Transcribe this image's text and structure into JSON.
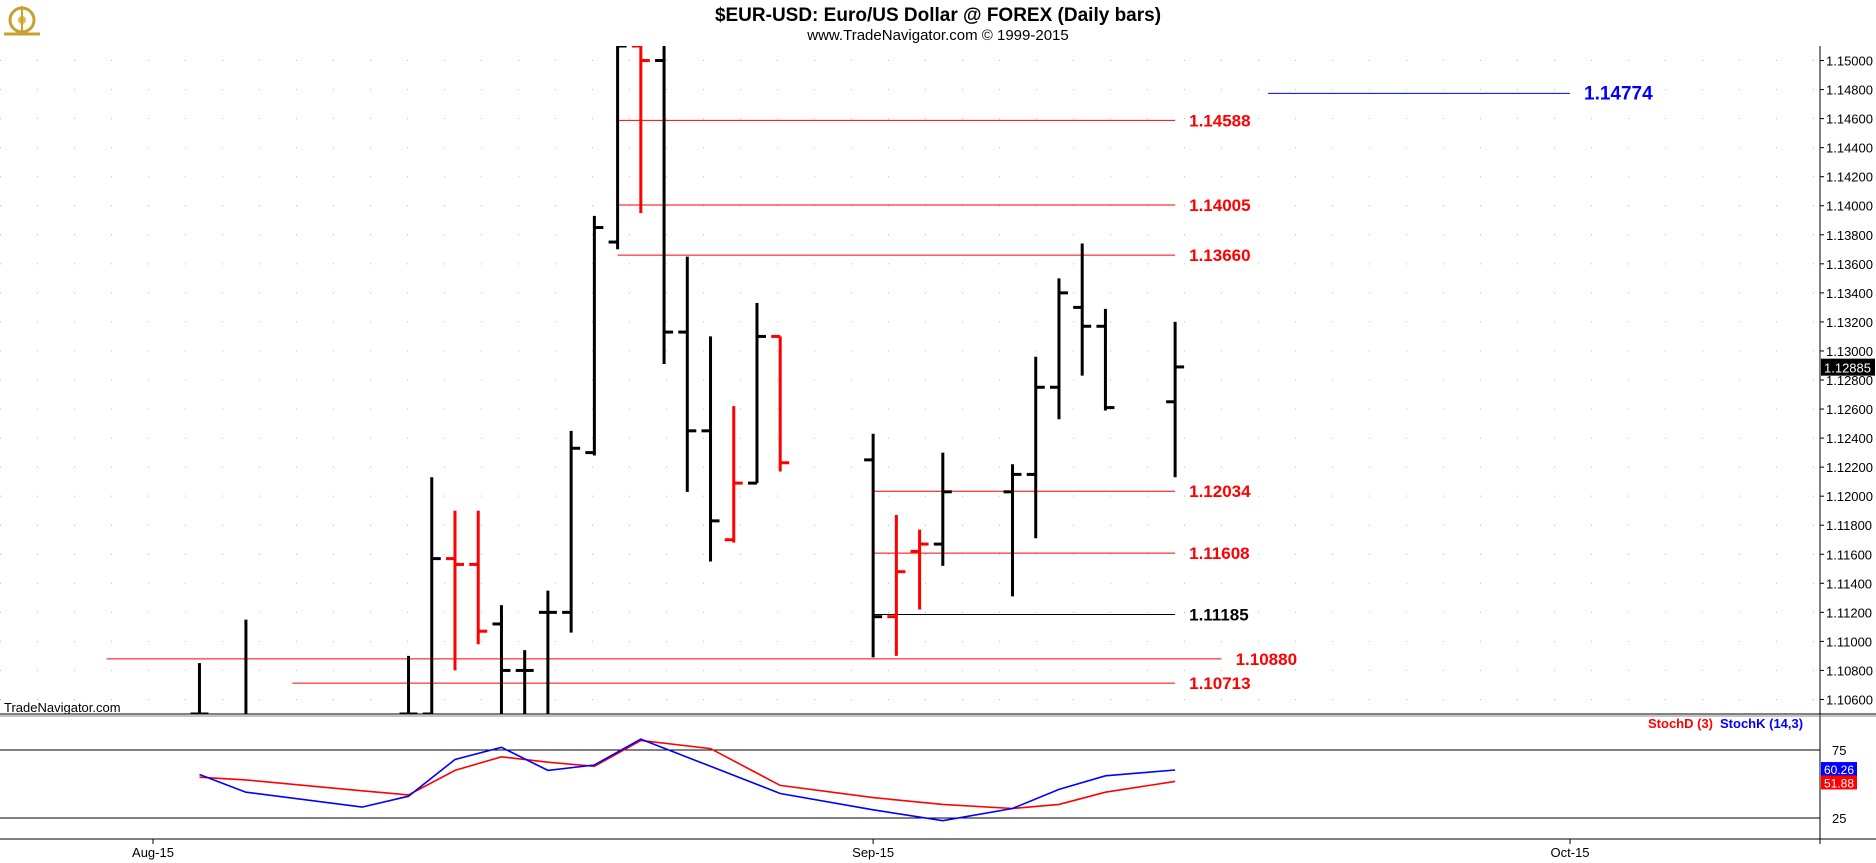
{
  "header": {
    "title": "$EUR-USD:  Euro/US Dollar @ FOREX  (Daily bars)",
    "copyright": "www.TradeNavigator.com © 1999-2015",
    "watermark": "TradeNavigator.com",
    "logo_icon": "gyroscope-logo-icon"
  },
  "colors": {
    "up_bar": "#000000",
    "down_bar": "#ff0000",
    "support_line": "#ff0000",
    "target_line": "#0000ff",
    "stoch_d": "#ff0000",
    "stoch_k": "#0000ff",
    "last_price_bg": "#000000"
  },
  "chart_data": [
    {
      "type": "ohlc",
      "title": "$EUR-USD:  Euro/US Dollar @ FOREX  (Daily bars)",
      "ylim": [
        1.105,
        1.151
      ],
      "y_ticks": [
        {
          "v": 1.106,
          "label": "1.10600"
        },
        {
          "v": 1.108,
          "label": "1.10800"
        },
        {
          "v": 1.11,
          "label": "1.11000"
        },
        {
          "v": 1.112,
          "label": "1.11200"
        },
        {
          "v": 1.114,
          "label": "1.11400"
        },
        {
          "v": 1.116,
          "label": "1.11600"
        },
        {
          "v": 1.118,
          "label": "1.11800"
        },
        {
          "v": 1.12,
          "label": "1.12000"
        },
        {
          "v": 1.122,
          "label": "1.12200"
        },
        {
          "v": 1.124,
          "label": "1.12400"
        },
        {
          "v": 1.126,
          "label": "1.12600"
        },
        {
          "v": 1.128,
          "label": "1.12800"
        },
        {
          "v": 1.13,
          "label": "1.13000"
        },
        {
          "v": 1.132,
          "label": "1.13200"
        },
        {
          "v": 1.134,
          "label": "1.13400"
        },
        {
          "v": 1.136,
          "label": "1.13600"
        },
        {
          "v": 1.138,
          "label": "1.13800"
        },
        {
          "v": 1.14,
          "label": "1.14000"
        },
        {
          "v": 1.142,
          "label": "1.14200"
        },
        {
          "v": 1.144,
          "label": "1.14400"
        },
        {
          "v": 1.146,
          "label": "1.14600"
        },
        {
          "v": 1.148,
          "label": "1.14800"
        },
        {
          "v": 1.15,
          "label": "1.15000"
        }
      ],
      "last_price": {
        "value": 1.12885,
        "label": "1.12885"
      },
      "bars": [
        {
          "d": "2015-08-03",
          "o": 1.105,
          "h": 1.1085,
          "l": 1.104,
          "c": 1.105,
          "dir": "up"
        },
        {
          "d": "2015-08-05",
          "o": 1.103,
          "h": 1.1115,
          "l": 1.1,
          "c": 1.104,
          "dir": "up"
        },
        {
          "d": "2015-08-12",
          "o": 1.105,
          "h": 1.109,
          "l": 1.103,
          "c": 1.105,
          "dir": "up"
        },
        {
          "d": "2015-08-13",
          "o": 1.105,
          "h": 1.1213,
          "l": 1.103,
          "c": 1.1157,
          "dir": "up"
        },
        {
          "d": "2015-08-14",
          "o": 1.1157,
          "h": 1.119,
          "l": 1.108,
          "c": 1.1153,
          "dir": "down"
        },
        {
          "d": "2015-08-15",
          "o": 1.1153,
          "h": 1.119,
          "l": 1.1098,
          "c": 1.1107,
          "dir": "down"
        },
        {
          "d": "2015-08-16",
          "o": 1.1112,
          "h": 1.1125,
          "l": 1.104,
          "c": 1.108,
          "dir": "up"
        },
        {
          "d": "2015-08-17",
          "o": 1.108,
          "h": 1.1094,
          "l": 1.104,
          "c": 1.108,
          "dir": "up"
        },
        {
          "d": "2015-08-18",
          "o": 1.112,
          "h": 1.1135,
          "l": 1.104,
          "c": 1.112,
          "dir": "up"
        },
        {
          "d": "2015-08-19",
          "o": 1.112,
          "h": 1.1245,
          "l": 1.1106,
          "c": 1.1233,
          "dir": "up"
        },
        {
          "d": "2015-08-20",
          "o": 1.123,
          "h": 1.1393,
          "l": 1.1228,
          "c": 1.1385,
          "dir": "up"
        },
        {
          "d": "2015-08-21",
          "o": 1.1375,
          "h": 1.152,
          "l": 1.137,
          "c": 1.151,
          "dir": "up"
        },
        {
          "d": "2015-08-22",
          "o": 1.151,
          "h": 1.152,
          "l": 1.1395,
          "c": 1.15,
          "dir": "down"
        },
        {
          "d": "2015-08-23",
          "o": 1.15,
          "h": 1.152,
          "l": 1.1291,
          "c": 1.1313,
          "dir": "up"
        },
        {
          "d": "2015-08-24",
          "o": 1.1313,
          "h": 1.1365,
          "l": 1.1203,
          "c": 1.1245,
          "dir": "up"
        },
        {
          "d": "2015-08-25",
          "o": 1.1245,
          "h": 1.131,
          "l": 1.1155,
          "c": 1.1183,
          "dir": "up"
        },
        {
          "d": "2015-08-26",
          "o": 1.117,
          "h": 1.1262,
          "l": 1.1168,
          "c": 1.1209,
          "dir": "down"
        },
        {
          "d": "2015-08-27",
          "o": 1.1209,
          "h": 1.1333,
          "l": 1.1209,
          "c": 1.131,
          "dir": "up"
        },
        {
          "d": "2015-08-28",
          "o": 1.131,
          "h": 1.131,
          "l": 1.1217,
          "c": 1.1223,
          "dir": "down"
        },
        {
          "d": "2015-09-01",
          "o": 1.1225,
          "h": 1.1243,
          "l": 1.1089,
          "c": 1.1117,
          "dir": "up"
        },
        {
          "d": "2015-09-02",
          "o": 1.1117,
          "h": 1.1187,
          "l": 1.109,
          "c": 1.1148,
          "dir": "down"
        },
        {
          "d": "2015-09-03",
          "o": 1.1162,
          "h": 1.1177,
          "l": 1.1122,
          "c": 1.1167,
          "dir": "down"
        },
        {
          "d": "2015-09-04",
          "o": 1.1167,
          "h": 1.123,
          "l": 1.1152,
          "c": 1.1203,
          "dir": "up"
        },
        {
          "d": "2015-09-07",
          "o": 1.1203,
          "h": 1.1222,
          "l": 1.1131,
          "c": 1.1215,
          "dir": "up"
        },
        {
          "d": "2015-09-08",
          "o": 1.1215,
          "h": 1.1296,
          "l": 1.1171,
          "c": 1.1275,
          "dir": "up"
        },
        {
          "d": "2015-09-09",
          "o": 1.1275,
          "h": 1.135,
          "l": 1.1253,
          "c": 1.134,
          "dir": "up"
        },
        {
          "d": "2015-09-10",
          "o": 1.133,
          "h": 1.1374,
          "l": 1.1283,
          "c": 1.1317,
          "dir": "up"
        },
        {
          "d": "2015-09-11",
          "o": 1.1317,
          "h": 1.1329,
          "l": 1.1259,
          "c": 1.1261,
          "dir": "up"
        },
        {
          "d": "2015-09-14",
          "o": 1.1265,
          "h": 1.132,
          "l": 1.1213,
          "c": 1.1289,
          "dir": "up"
        }
      ],
      "levels": [
        {
          "value": 1.14774,
          "label": "1.14774",
          "color": "#0000ff",
          "x_from": "2015-09-18",
          "x_to": "2015-10-01"
        },
        {
          "value": 1.14588,
          "label": "1.14588",
          "color": "#ff0000",
          "x_from": "2015-08-21",
          "x_to": "2015-09-14"
        },
        {
          "value": 1.14005,
          "label": "1.14005",
          "color": "#ff0000",
          "x_from": "2015-08-21",
          "x_to": "2015-09-14"
        },
        {
          "value": 1.1366,
          "label": "1.13660",
          "color": "#ff0000",
          "x_from": "2015-08-21",
          "x_to": "2015-09-14"
        },
        {
          "value": 1.12034,
          "label": "1.12034",
          "color": "#ff0000",
          "x_from": "2015-09-01",
          "x_to": "2015-09-14"
        },
        {
          "value": 1.11608,
          "label": "1.11608",
          "color": "#ff0000",
          "x_from": "2015-09-01",
          "x_to": "2015-09-14"
        },
        {
          "value": 1.11185,
          "label": "1.11185",
          "color": "#000000",
          "x_from": "2015-09-01",
          "x_to": "2015-09-14"
        },
        {
          "value": 1.1088,
          "label": "1.10880",
          "color": "#ff0000",
          "x_from": "2015-07-30",
          "x_to": "2015-09-16"
        },
        {
          "value": 1.10713,
          "label": "1.10713",
          "color": "#ff0000",
          "x_from": "2015-08-07",
          "x_to": "2015-09-14"
        }
      ]
    },
    {
      "type": "line",
      "title": "StochD (3)  StochK (14,3)",
      "ylim": [
        0,
        100
      ],
      "y_ticks": [
        {
          "v": 75,
          "label": "75"
        },
        {
          "v": 25,
          "label": "25"
        }
      ],
      "x_ticks": [
        {
          "d": "2015-08-01",
          "label": "Aug-15"
        },
        {
          "d": "2015-09-01",
          "label": "Sep-15"
        },
        {
          "d": "2015-10-01",
          "label": "Oct-15"
        }
      ],
      "series": [
        {
          "name": "StochD (3)",
          "color": "#ff0000",
          "current_label": "51.88",
          "points": [
            {
              "d": "2015-08-03",
              "v": 55
            },
            {
              "d": "2015-08-05",
              "v": 53
            },
            {
              "d": "2015-08-10",
              "v": 45
            },
            {
              "d": "2015-08-12",
              "v": 42
            },
            {
              "d": "2015-08-14",
              "v": 60
            },
            {
              "d": "2015-08-16",
              "v": 70
            },
            {
              "d": "2015-08-18",
              "v": 66
            },
            {
              "d": "2015-08-20",
              "v": 63
            },
            {
              "d": "2015-08-22",
              "v": 82
            },
            {
              "d": "2015-08-25",
              "v": 76
            },
            {
              "d": "2015-08-28",
              "v": 49
            },
            {
              "d": "2015-09-01",
              "v": 40
            },
            {
              "d": "2015-09-04",
              "v": 35
            },
            {
              "d": "2015-09-07",
              "v": 32
            },
            {
              "d": "2015-09-09",
              "v": 35
            },
            {
              "d": "2015-09-11",
              "v": 44
            },
            {
              "d": "2015-09-14",
              "v": 51.88
            }
          ]
        },
        {
          "name": "StochK (14,3)",
          "color": "#0000ff",
          "current_label": "60.26",
          "points": [
            {
              "d": "2015-08-03",
              "v": 57
            },
            {
              "d": "2015-08-05",
              "v": 44
            },
            {
              "d": "2015-08-10",
              "v": 33
            },
            {
              "d": "2015-08-12",
              "v": 41
            },
            {
              "d": "2015-08-14",
              "v": 68
            },
            {
              "d": "2015-08-16",
              "v": 77
            },
            {
              "d": "2015-08-18",
              "v": 60
            },
            {
              "d": "2015-08-20",
              "v": 64
            },
            {
              "d": "2015-08-22",
              "v": 83
            },
            {
              "d": "2015-08-25",
              "v": 63
            },
            {
              "d": "2015-08-28",
              "v": 43
            },
            {
              "d": "2015-09-01",
              "v": 31
            },
            {
              "d": "2015-09-04",
              "v": 23
            },
            {
              "d": "2015-09-07",
              "v": 32
            },
            {
              "d": "2015-09-09",
              "v": 46
            },
            {
              "d": "2015-09-11",
              "v": 56
            },
            {
              "d": "2015-09-14",
              "v": 60.26
            }
          ]
        }
      ]
    }
  ]
}
